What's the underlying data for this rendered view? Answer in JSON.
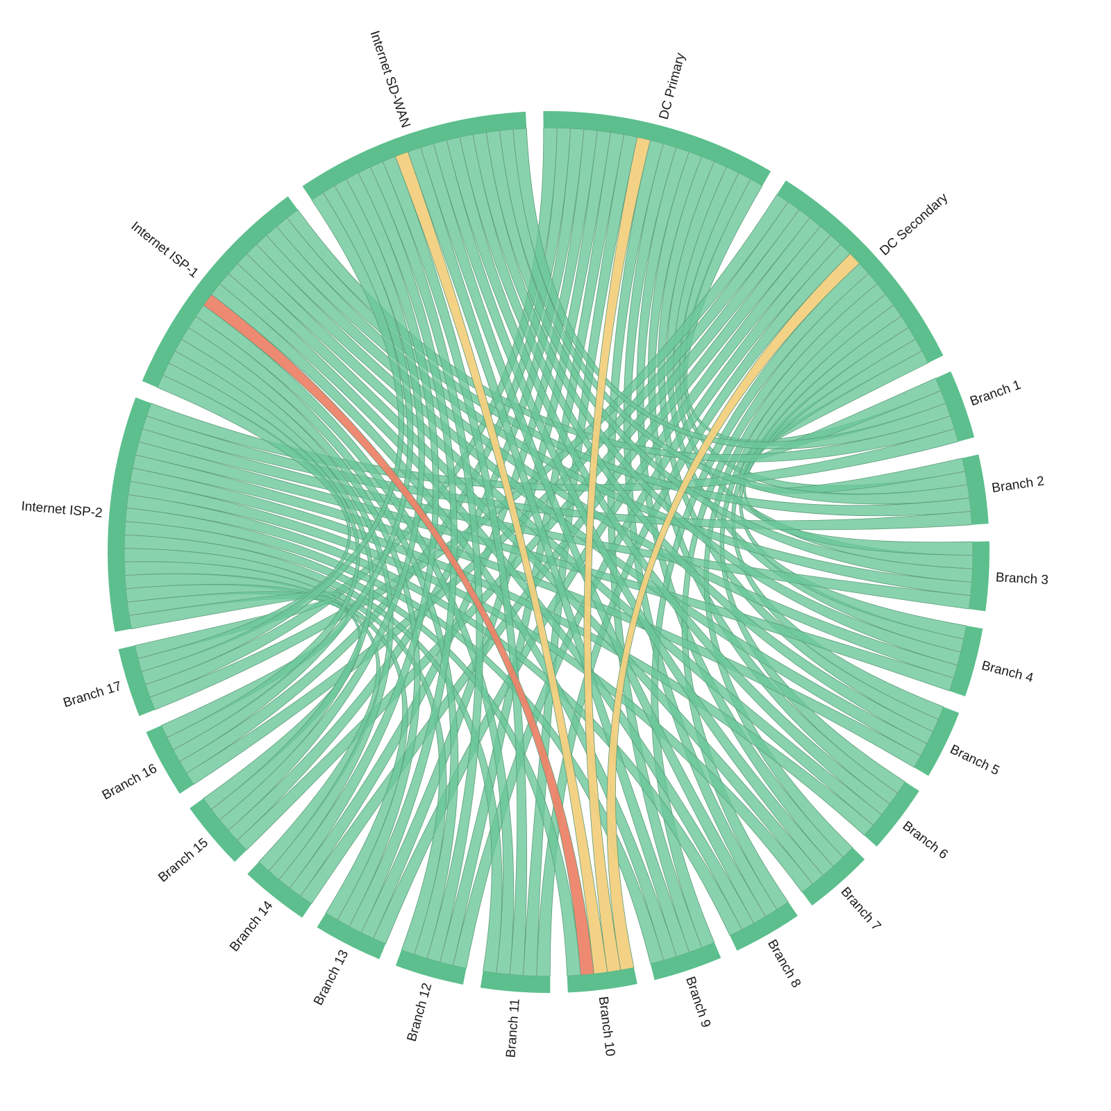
{
  "colors": {
    "arc": "#5cbf8d",
    "ribbon": "#6cc79a",
    "ribbon_stroke": "#5a9b78",
    "warning": "#f2d080",
    "critical": "#ec8469"
  },
  "chart_data": {
    "type": "chord",
    "title": "",
    "nodes": [
      {
        "id": "dc-primary",
        "label": "DC Primary"
      },
      {
        "id": "dc-secondary",
        "label": "DC Secondary"
      },
      {
        "id": "branch-1",
        "label": "Branch 1"
      },
      {
        "id": "branch-2",
        "label": "Branch 2"
      },
      {
        "id": "branch-3",
        "label": "Branch 3"
      },
      {
        "id": "branch-4",
        "label": "Branch 4"
      },
      {
        "id": "branch-5",
        "label": "Branch 5"
      },
      {
        "id": "branch-6",
        "label": "Branch 6"
      },
      {
        "id": "branch-7",
        "label": "Branch 7"
      },
      {
        "id": "branch-8",
        "label": "Branch 8"
      },
      {
        "id": "branch-9",
        "label": "Branch 9"
      },
      {
        "id": "branch-10",
        "label": "Branch 10"
      },
      {
        "id": "branch-11",
        "label": "Branch 11"
      },
      {
        "id": "branch-12",
        "label": "Branch 12"
      },
      {
        "id": "branch-13",
        "label": "Branch 13"
      },
      {
        "id": "branch-14",
        "label": "Branch 14"
      },
      {
        "id": "branch-15",
        "label": "Branch 15"
      },
      {
        "id": "branch-16",
        "label": "Branch 16"
      },
      {
        "id": "branch-17",
        "label": "Branch 17"
      },
      {
        "id": "internet-isp-2",
        "label": "Internet ISP-2"
      },
      {
        "id": "internet-isp-1",
        "label": "Internet ISP-1"
      },
      {
        "id": "internet-sd-wan",
        "label": "Internet SD-WAN"
      }
    ],
    "hubs": [
      "dc-primary",
      "dc-secondary",
      "internet-isp-2",
      "internet-isp-1",
      "internet-sd-wan"
    ],
    "branches": [
      "branch-1",
      "branch-2",
      "branch-3",
      "branch-4",
      "branch-5",
      "branch-6",
      "branch-7",
      "branch-8",
      "branch-9",
      "branch-10",
      "branch-11",
      "branch-12",
      "branch-13",
      "branch-14",
      "branch-15",
      "branch-16",
      "branch-17"
    ],
    "links": "every hub connects to every branch with equal weight 1",
    "link_weight": 1,
    "highlighted_links": [
      {
        "source": "internet-isp-1",
        "target": "branch-10",
        "status": "critical"
      },
      {
        "source": "internet-sd-wan",
        "target": "branch-10",
        "status": "warning"
      },
      {
        "source": "dc-primary",
        "target": "branch-10",
        "status": "warning"
      },
      {
        "source": "dc-secondary",
        "target": "branch-10",
        "status": "warning"
      }
    ]
  }
}
